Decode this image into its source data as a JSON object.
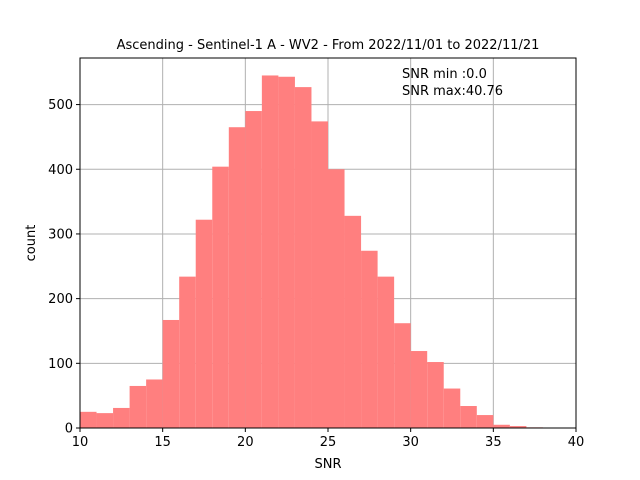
{
  "chart_data": {
    "type": "bar",
    "title": "Ascending - Sentinel-1 A - WV2 - From 2022/11/01 to 2022/11/21",
    "xlabel": "SNR",
    "ylabel": "count",
    "xlim": [
      10,
      40
    ],
    "ylim": [
      0,
      572
    ],
    "grid": true,
    "bar_color": "#ff7f7f",
    "bin_width": 1,
    "bins": [
      {
        "x": 10,
        "count": 25
      },
      {
        "x": 11,
        "count": 23
      },
      {
        "x": 12,
        "count": 31
      },
      {
        "x": 13,
        "count": 65
      },
      {
        "x": 14,
        "count": 75
      },
      {
        "x": 15,
        "count": 167
      },
      {
        "x": 16,
        "count": 234
      },
      {
        "x": 17,
        "count": 322
      },
      {
        "x": 18,
        "count": 404
      },
      {
        "x": 19,
        "count": 465
      },
      {
        "x": 20,
        "count": 490
      },
      {
        "x": 21,
        "count": 545
      },
      {
        "x": 22,
        "count": 543
      },
      {
        "x": 23,
        "count": 527
      },
      {
        "x": 24,
        "count": 474
      },
      {
        "x": 25,
        "count": 400
      },
      {
        "x": 26,
        "count": 328
      },
      {
        "x": 27,
        "count": 274
      },
      {
        "x": 28,
        "count": 234
      },
      {
        "x": 29,
        "count": 162
      },
      {
        "x": 30,
        "count": 119
      },
      {
        "x": 31,
        "count": 102
      },
      {
        "x": 32,
        "count": 61
      },
      {
        "x": 33,
        "count": 34
      },
      {
        "x": 34,
        "count": 20
      },
      {
        "x": 35,
        "count": 5
      },
      {
        "x": 36,
        "count": 3
      },
      {
        "x": 37,
        "count": 1
      },
      {
        "x": 38,
        "count": 0
      },
      {
        "x": 39,
        "count": 0
      }
    ],
    "x_ticks": [
      10,
      15,
      20,
      25,
      30,
      35,
      40
    ],
    "y_ticks": [
      0,
      100,
      200,
      300,
      400,
      500
    ],
    "annotations": [
      "SNR min :0.0",
      "SNR max:40.76"
    ]
  }
}
